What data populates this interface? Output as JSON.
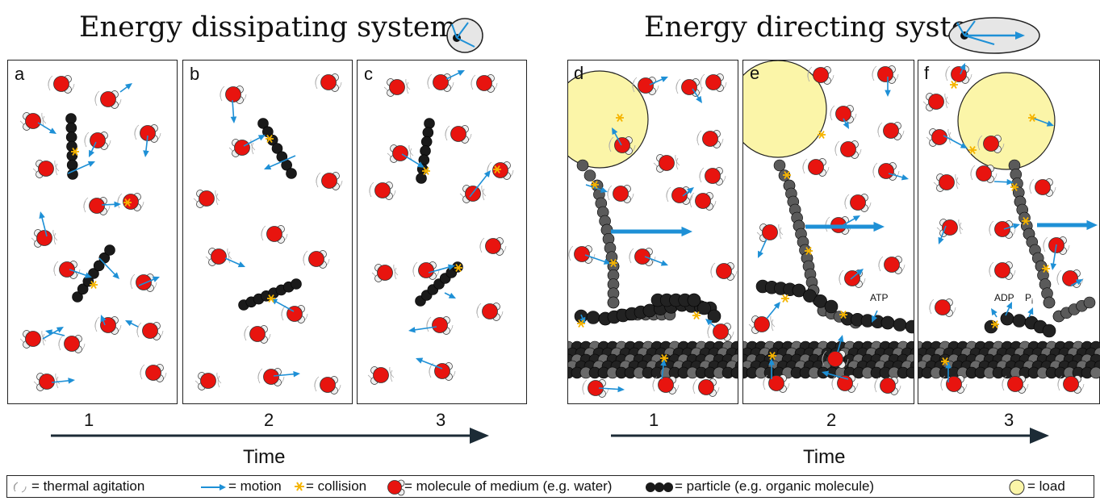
{
  "titles": {
    "left": "Energy dissipating system",
    "right": "Energy directing system"
  },
  "panels": [
    {
      "label": "a"
    },
    {
      "label": "b"
    },
    {
      "label": "c"
    },
    {
      "label": "d"
    },
    {
      "label": "e"
    },
    {
      "label": "f"
    }
  ],
  "steps_left": [
    "1",
    "2",
    "3"
  ],
  "steps_right": [
    "1",
    "2",
    "3"
  ],
  "time_label": "Time",
  "annotations": {
    "atp": "ATP",
    "adp": "ADP",
    "pi": "P",
    "pi_sub": "i"
  },
  "legend": {
    "thermal": "= thermal agitation",
    "motion": "= motion",
    "collision": "= collision",
    "medium": "= molecule of medium (e.g. water)",
    "particle": "= particle (e.g. organic molecule)",
    "load": "= load"
  },
  "colors": {
    "water": "#e8140f",
    "arrow": "#1e90d6",
    "collision": "#f5b400",
    "load": "#fbf5a8",
    "particle": "#1a1a1a",
    "filament": "#5a5a5a",
    "axis": "#1c2b36"
  },
  "icons": [
    "thermal-agitation-icon",
    "motion-arrow-icon",
    "collision-star-icon",
    "water-molecule-icon",
    "particle-chain-icon",
    "load-icon"
  ]
}
